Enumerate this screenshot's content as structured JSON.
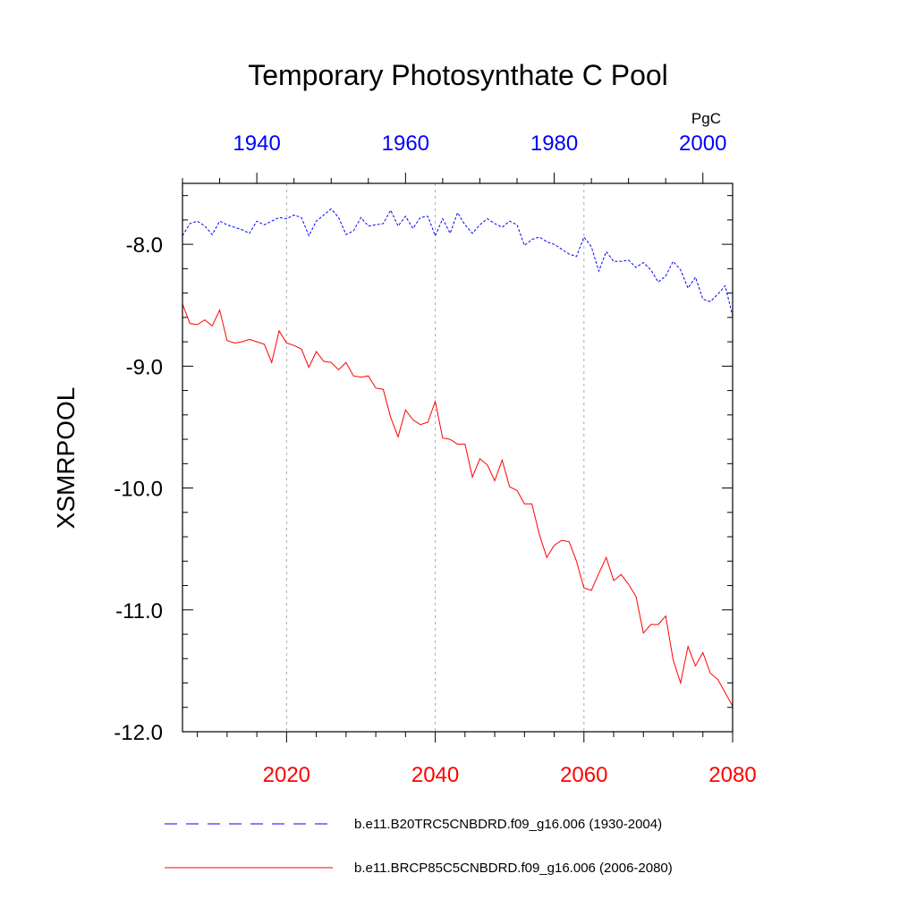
{
  "chart_data": {
    "type": "line",
    "title": "Temporary Photosynthate C Pool",
    "units": "PgC",
    "ylabel": "XSMRPOOL",
    "ylim": [
      -12.0,
      -7.5
    ],
    "yticks": [
      "-8.0",
      "-9.0",
      "-10.0",
      "-11.0",
      "-12.0"
    ],
    "ytick_values": [
      -8.0,
      -9.0,
      -10.0,
      -11.0,
      -12.0
    ],
    "grid": "vertical dotted lines at labeled bottom-axis years",
    "top_axis": {
      "range": [
        1930,
        2004
      ],
      "tick_labels": [
        "1940",
        "1960",
        "1980",
        "2000"
      ],
      "tick_values": [
        1940,
        1960,
        1980,
        2000
      ],
      "color": "#0000ff"
    },
    "bottom_axis": {
      "range": [
        2006,
        2080
      ],
      "tick_labels": [
        "2020",
        "2040",
        "2060",
        "2080"
      ],
      "tick_values": [
        2020,
        2040,
        2060,
        2080
      ],
      "color": "#ff0000"
    },
    "legend_position": "bottom",
    "series": [
      {
        "name": "b.e11.B20TRC5CNBDRD.f09_g16.006 (1930-2004)",
        "axis": "top",
        "color": "#0000ff",
        "dash": "dashed",
        "x_start": 1930,
        "values": [
          -7.93,
          -7.83,
          -7.81,
          -7.85,
          -7.92,
          -7.81,
          -7.84,
          -7.86,
          -7.88,
          -7.91,
          -7.81,
          -7.84,
          -7.81,
          -7.78,
          -7.79,
          -7.76,
          -7.78,
          -7.93,
          -7.81,
          -7.76,
          -7.71,
          -7.78,
          -7.92,
          -7.89,
          -7.78,
          -7.85,
          -7.84,
          -7.83,
          -7.72,
          -7.85,
          -7.77,
          -7.87,
          -7.78,
          -7.77,
          -7.93,
          -7.79,
          -7.91,
          -7.74,
          -7.84,
          -7.91,
          -7.84,
          -7.79,
          -7.83,
          -7.86,
          -7.81,
          -7.84,
          -8.01,
          -7.96,
          -7.94,
          -7.98,
          -8.0,
          -8.04,
          -8.08,
          -8.1,
          -7.94,
          -8.02,
          -8.22,
          -8.06,
          -8.14,
          -8.14,
          -8.13,
          -8.19,
          -8.15,
          -8.21,
          -8.31,
          -8.26,
          -8.14,
          -8.21,
          -8.36,
          -8.27,
          -8.45,
          -8.47,
          -8.41,
          -8.34,
          -8.59
        ]
      },
      {
        "name": "b.e11.BRCP85C5CNBDRD.f09_g16.006 (2006-2080)",
        "axis": "bottom",
        "color": "#ff0000",
        "dash": "solid",
        "x_start": 2006,
        "values": [
          -8.49,
          -8.65,
          -8.66,
          -8.62,
          -8.67,
          -8.54,
          -8.79,
          -8.81,
          -8.8,
          -8.78,
          -8.8,
          -8.82,
          -8.97,
          -8.71,
          -8.81,
          -8.83,
          -8.86,
          -9.01,
          -8.88,
          -8.96,
          -8.97,
          -9.03,
          -8.97,
          -9.08,
          -9.09,
          -9.08,
          -9.18,
          -9.19,
          -9.42,
          -9.58,
          -9.36,
          -9.44,
          -9.48,
          -9.46,
          -9.29,
          -9.59,
          -9.6,
          -9.64,
          -9.64,
          -9.91,
          -9.76,
          -9.81,
          -9.94,
          -9.77,
          -9.99,
          -10.02,
          -10.13,
          -10.13,
          -10.38,
          -10.57,
          -10.47,
          -10.43,
          -10.44,
          -10.6,
          -10.82,
          -10.84,
          -10.7,
          -10.57,
          -10.76,
          -10.71,
          -10.79,
          -10.89,
          -11.19,
          -11.12,
          -11.12,
          -11.05,
          -11.41,
          -11.6,
          -11.3,
          -11.46,
          -11.35,
          -11.52,
          -11.57,
          -11.68,
          -11.79
        ]
      }
    ]
  }
}
